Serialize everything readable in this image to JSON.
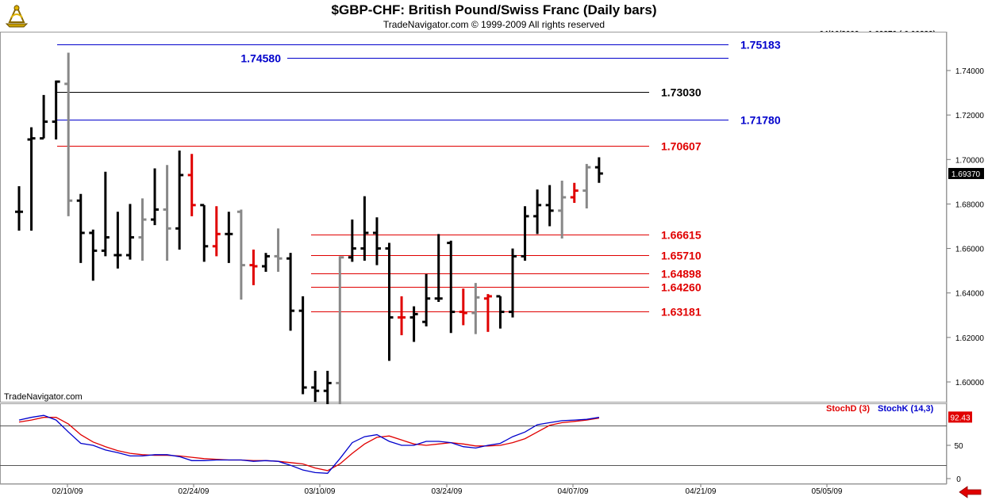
{
  "header": {
    "title": "$GBP-CHF:  British Pound/Swiss Franc  (Daily bars)",
    "subtitle": "TradeNavigator.com © 1999-2009 All rights reserved",
    "readout": "04/10/2009 = 1.69370 (-0.00239)",
    "watermark": "TradeNavigator.com"
  },
  "colors": {
    "up": "#000000",
    "down": "#888888",
    "red": "#e00000",
    "blue": "#0000cc",
    "stochD": "#e00000",
    "stochK": "#0000cc"
  },
  "chart_data": [
    {
      "type": "ohlc",
      "yrange": [
        1.59,
        1.75
      ],
      "y_ticks": [
        "1.74000",
        "1.72000",
        "1.70000",
        "1.68000",
        "1.66000",
        "1.64000",
        "1.62000",
        "1.60000"
      ],
      "x_ticks": [
        "02/10/09",
        "02/24/09",
        "03/10/09",
        "03/24/09",
        "04/07/09",
        "04/21/09",
        "05/05/09"
      ],
      "last_price": "1.69370",
      "bars": [
        {
          "d": 0,
          "o": 1.6765,
          "h": 1.688,
          "l": 1.668,
          "c": 1.6765,
          "col": "up"
        },
        {
          "d": 1,
          "o": 1.709,
          "h": 1.7145,
          "l": 1.668,
          "c": 1.7095,
          "col": "up"
        },
        {
          "d": 2,
          "o": 1.7095,
          "h": 1.729,
          "l": 1.7095,
          "c": 1.717,
          "col": "up"
        },
        {
          "d": 3,
          "o": 1.717,
          "h": 1.7355,
          "l": 1.709,
          "c": 1.735,
          "col": "up"
        },
        {
          "d": 4,
          "o": 1.734,
          "h": 1.748,
          "l": 1.6745,
          "c": 1.6815,
          "col": "down"
        },
        {
          "d": 5,
          "o": 1.6815,
          "h": 1.6845,
          "l": 1.6535,
          "c": 1.667,
          "col": "up"
        },
        {
          "d": 6,
          "o": 1.667,
          "h": 1.6685,
          "l": 1.6455,
          "c": 1.659,
          "col": "up"
        },
        {
          "d": 7,
          "o": 1.659,
          "h": 1.6945,
          "l": 1.6565,
          "c": 1.665,
          "col": "up"
        },
        {
          "d": 8,
          "o": 1.657,
          "h": 1.6765,
          "l": 1.651,
          "c": 1.657,
          "col": "up"
        },
        {
          "d": 9,
          "o": 1.657,
          "h": 1.68,
          "l": 1.655,
          "c": 1.665,
          "col": "up"
        },
        {
          "d": 10,
          "o": 1.665,
          "h": 1.6825,
          "l": 1.6545,
          "c": 1.673,
          "col": "down"
        },
        {
          "d": 11,
          "o": 1.673,
          "h": 1.696,
          "l": 1.6705,
          "c": 1.6775,
          "col": "up"
        },
        {
          "d": 12,
          "o": 1.6775,
          "h": 1.6975,
          "l": 1.6545,
          "c": 1.669,
          "col": "down"
        },
        {
          "d": 13,
          "o": 1.669,
          "h": 1.704,
          "l": 1.6595,
          "c": 1.693,
          "col": "up"
        },
        {
          "d": 14,
          "o": 1.693,
          "h": 1.7025,
          "l": 1.6745,
          "c": 1.6795,
          "col": "red"
        },
        {
          "d": 15,
          "o": 1.6795,
          "h": 1.6795,
          "l": 1.654,
          "c": 1.661,
          "col": "up"
        },
        {
          "d": 16,
          "o": 1.661,
          "h": 1.679,
          "l": 1.6565,
          "c": 1.6665,
          "col": "red"
        },
        {
          "d": 17,
          "o": 1.6665,
          "h": 1.6765,
          "l": 1.6535,
          "c": 1.6665,
          "col": "up"
        },
        {
          "d": 18,
          "o": 1.6765,
          "h": 1.6775,
          "l": 1.637,
          "c": 1.6525,
          "col": "down"
        },
        {
          "d": 19,
          "o": 1.6525,
          "h": 1.6595,
          "l": 1.6435,
          "c": 1.652,
          "col": "red"
        },
        {
          "d": 20,
          "o": 1.652,
          "h": 1.658,
          "l": 1.6495,
          "c": 1.6565,
          "col": "up"
        },
        {
          "d": 21,
          "o": 1.6565,
          "h": 1.669,
          "l": 1.6495,
          "c": 1.6555,
          "col": "down"
        },
        {
          "d": 22,
          "o": 1.6555,
          "h": 1.658,
          "l": 1.623,
          "c": 1.632,
          "col": "up"
        },
        {
          "d": 23,
          "o": 1.632,
          "h": 1.6385,
          "l": 1.5945,
          "c": 1.5975,
          "col": "up"
        },
        {
          "d": 24,
          "o": 1.5975,
          "h": 1.605,
          "l": 1.591,
          "c": 1.596,
          "col": "up"
        },
        {
          "d": 25,
          "o": 1.596,
          "h": 1.605,
          "l": 1.59,
          "c": 1.5995,
          "col": "up"
        },
        {
          "d": 26,
          "o": 1.5995,
          "h": 1.6565,
          "l": 1.59,
          "c": 1.656,
          "col": "down"
        },
        {
          "d": 27,
          "o": 1.656,
          "h": 1.673,
          "l": 1.654,
          "c": 1.66,
          "col": "up"
        },
        {
          "d": 28,
          "o": 1.66,
          "h": 1.6835,
          "l": 1.6545,
          "c": 1.667,
          "col": "up"
        },
        {
          "d": 29,
          "o": 1.667,
          "h": 1.674,
          "l": 1.6525,
          "c": 1.66,
          "col": "up"
        },
        {
          "d": 30,
          "o": 1.66,
          "h": 1.6625,
          "l": 1.6095,
          "c": 1.629,
          "col": "up"
        },
        {
          "d": 31,
          "o": 1.629,
          "h": 1.6385,
          "l": 1.621,
          "c": 1.629,
          "col": "red"
        },
        {
          "d": 32,
          "o": 1.629,
          "h": 1.634,
          "l": 1.618,
          "c": 1.6305,
          "col": "up"
        },
        {
          "d": 33,
          "o": 1.627,
          "h": 1.6485,
          "l": 1.625,
          "c": 1.6375,
          "col": "up"
        },
        {
          "d": 34,
          "o": 1.6375,
          "h": 1.6665,
          "l": 1.636,
          "c": 1.6375,
          "col": "up"
        },
        {
          "d": 35,
          "o": 1.6625,
          "h": 1.6635,
          "l": 1.622,
          "c": 1.6315,
          "col": "up"
        },
        {
          "d": 36,
          "o": 1.6315,
          "h": 1.642,
          "l": 1.6255,
          "c": 1.631,
          "col": "red"
        },
        {
          "d": 37,
          "o": 1.631,
          "h": 1.6445,
          "l": 1.6215,
          "c": 1.638,
          "col": "down"
        },
        {
          "d": 38,
          "o": 1.6375,
          "h": 1.6395,
          "l": 1.6225,
          "c": 1.6385,
          "col": "red"
        },
        {
          "d": 39,
          "o": 1.6385,
          "h": 1.6385,
          "l": 1.624,
          "c": 1.6315,
          "col": "up"
        },
        {
          "d": 40,
          "o": 1.6315,
          "h": 1.66,
          "l": 1.629,
          "c": 1.6565,
          "col": "up"
        },
        {
          "d": 41,
          "o": 1.6565,
          "h": 1.679,
          "l": 1.6545,
          "c": 1.6745,
          "col": "up"
        },
        {
          "d": 42,
          "o": 1.6745,
          "h": 1.6865,
          "l": 1.6665,
          "c": 1.6795,
          "col": "up"
        },
        {
          "d": 43,
          "o": 1.6795,
          "h": 1.6885,
          "l": 1.67,
          "c": 1.677,
          "col": "up"
        },
        {
          "d": 44,
          "o": 1.677,
          "h": 1.6905,
          "l": 1.6645,
          "c": 1.683,
          "col": "down"
        },
        {
          "d": 45,
          "o": 1.683,
          "h": 1.6895,
          "l": 1.6805,
          "c": 1.686,
          "col": "red"
        },
        {
          "d": 46,
          "o": 1.686,
          "h": 1.698,
          "l": 1.678,
          "c": 1.6965,
          "col": "down"
        },
        {
          "d": 47,
          "o": 1.6965,
          "h": 1.701,
          "l": 1.6895,
          "c": 1.6937,
          "col": "up"
        }
      ],
      "levels": [
        {
          "value": 1.75183,
          "label": "1.75183",
          "color": "blue",
          "x_from": 72,
          "x_to": 918,
          "label_side": "right"
        },
        {
          "value": 1.7458,
          "label": "1.74580",
          "color": "blue",
          "x_from": 362,
          "x_to": 918,
          "label_side": "left"
        },
        {
          "value": 1.7303,
          "label": "1.73030",
          "color": "black",
          "x_from": 72,
          "x_to": 818,
          "label_side": "right"
        },
        {
          "value": 1.7178,
          "label": "1.71780",
          "color": "blue",
          "x_from": 72,
          "x_to": 918,
          "label_side": "right"
        },
        {
          "value": 1.70607,
          "label": "1.70607",
          "color": "red",
          "x_from": 72,
          "x_to": 818,
          "label_side": "right"
        },
        {
          "value": 1.66615,
          "label": "1.66615",
          "color": "red",
          "x_from": 392,
          "x_to": 818,
          "label_side": "right"
        },
        {
          "value": 1.6571,
          "label": "1.65710",
          "color": "red",
          "x_from": 392,
          "x_to": 818,
          "label_side": "right"
        },
        {
          "value": 1.64898,
          "label": "1.64898",
          "color": "red",
          "x_from": 392,
          "x_to": 818,
          "label_side": "right"
        },
        {
          "value": 1.6426,
          "label": "1.64260",
          "color": "red",
          "x_from": 392,
          "x_to": 818,
          "label_side": "right"
        },
        {
          "value": 1.63181,
          "label": "1.63181",
          "color": "red",
          "x_from": 392,
          "x_to": 818,
          "label_side": "right"
        }
      ]
    },
    {
      "type": "line",
      "legend": [
        "StochD (3)",
        "StochK (14,3)"
      ],
      "yrange": [
        0,
        100
      ],
      "y_ticks": [
        "50",
        "0"
      ],
      "ref_lines": [
        80,
        20
      ],
      "last_value": "92.43",
      "series": [
        {
          "name": "StochD (3)",
          "color": "stochD",
          "values": [
            85,
            88,
            92,
            92,
            82,
            66,
            55,
            48,
            42,
            38,
            36,
            35,
            35,
            34,
            32,
            30,
            29,
            28,
            28,
            27,
            27,
            26,
            24,
            22,
            16,
            12,
            22,
            38,
            52,
            62,
            64,
            58,
            52,
            50,
            52,
            54,
            52,
            49,
            49,
            50,
            54,
            60,
            70,
            80,
            84,
            86,
            88,
            91
          ]
        },
        {
          "name": "StochK (14,3)",
          "color": "stochK",
          "values": [
            88,
            92,
            95,
            88,
            70,
            53,
            50,
            43,
            39,
            34,
            34,
            36,
            36,
            33,
            27,
            27,
            28,
            28,
            28,
            26,
            27,
            26,
            20,
            13,
            9,
            8,
            30,
            54,
            63,
            66,
            56,
            50,
            50,
            56,
            56,
            54,
            48,
            46,
            50,
            53,
            63,
            70,
            81,
            84,
            87,
            88,
            89,
            92
          ]
        }
      ]
    }
  ]
}
